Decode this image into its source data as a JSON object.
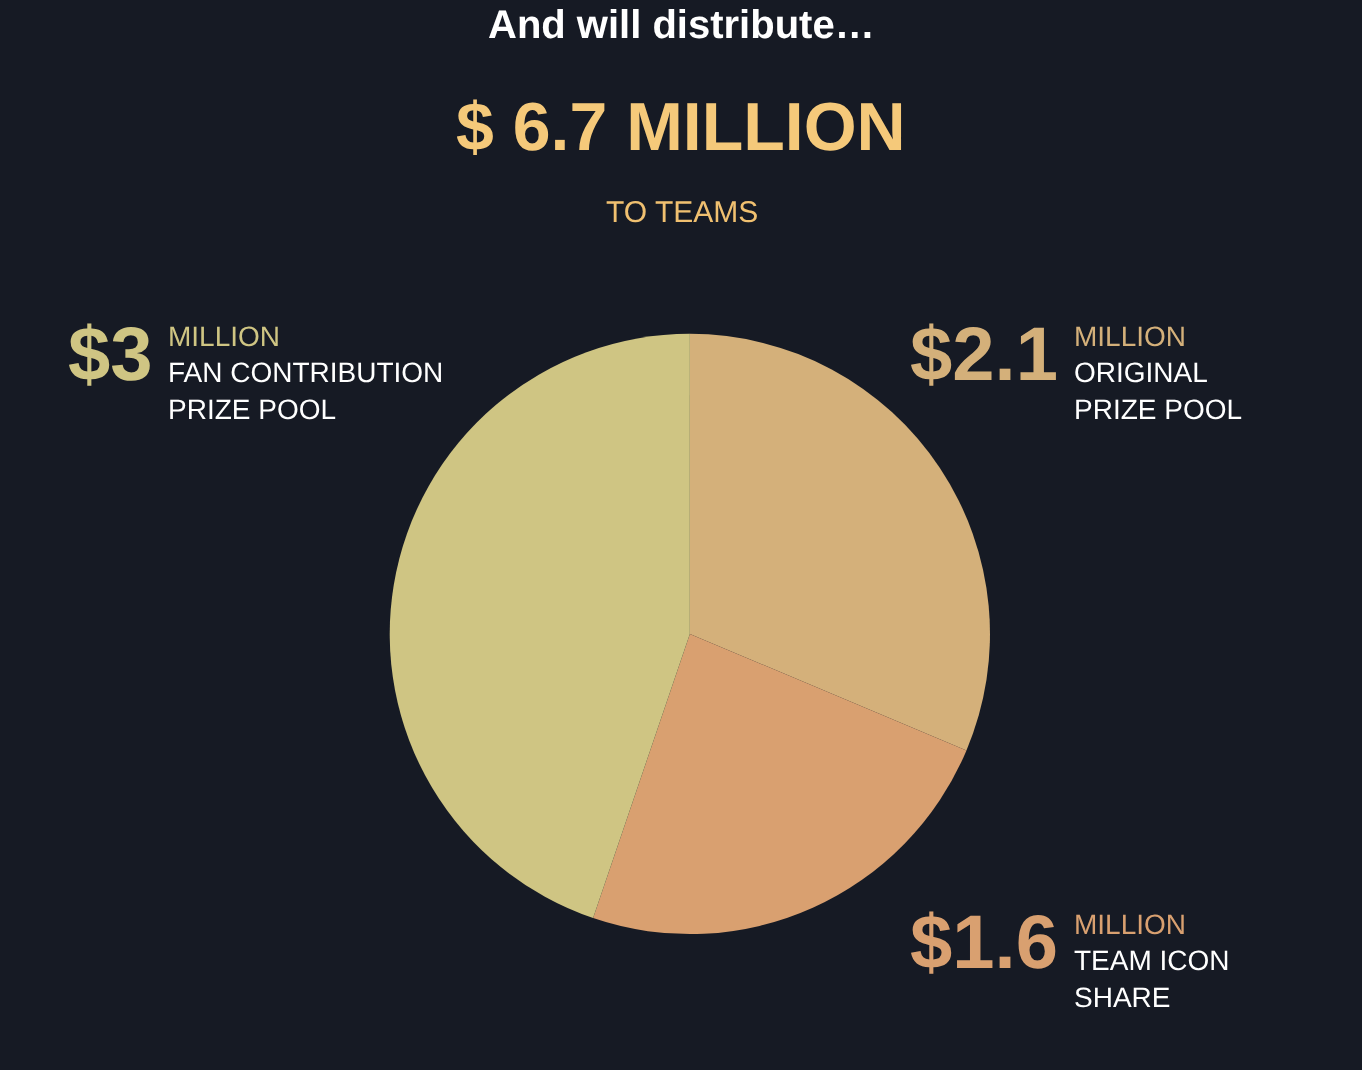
{
  "chart_data": {
    "type": "pie",
    "title": "And will distribute…",
    "subtitle": "$ 6.7 MILLION",
    "annotations": [
      "TO TEAMS"
    ],
    "categories": [
      "ORIGINAL\nPRIZE POOL",
      "TEAM ICON\nSHARE",
      "FAN CONTRIBUTION\nPRIZE POOL"
    ],
    "values": [
      2.1,
      1.6,
      3
    ],
    "value_labels": [
      "$2.1 MILLION",
      "$1.6 MILLION",
      "$3 MILLION"
    ],
    "colors": [
      "#d4b07a",
      "#d9a070",
      "#cfc583"
    ],
    "legend": false
  }
}
